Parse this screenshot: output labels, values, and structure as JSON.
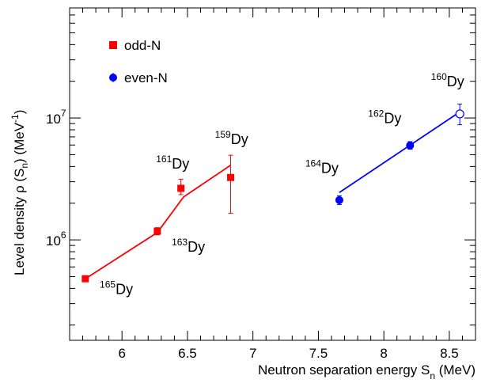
{
  "chart_data": {
    "type": "scatter",
    "title": "",
    "xlabel_main": "Neutron separation energy S",
    "xlabel_sub": "n",
    "xlabel_unit": " (MeV)",
    "ylabel_main": "Level density ρ (S",
    "ylabel_sub": "n",
    "ylabel_mid": ") (MeV",
    "ylabel_sup": "-1",
    "ylabel_end": ")",
    "xlim": [
      5.6,
      8.7
    ],
    "ylim": [
      150000,
      80000000
    ],
    "y_scale": "log",
    "x_ticks": [
      6,
      6.5,
      7,
      7.5,
      8,
      8.5
    ],
    "x_tick_labels": [
      "6",
      "6.5",
      "7",
      "7.5",
      "8",
      "8.5"
    ],
    "y_tick_labels": [
      {
        "value": 1000000,
        "base": "10",
        "exp": "6"
      },
      {
        "value": 10000000,
        "base": "10",
        "exp": "7"
      }
    ],
    "legend": {
      "placement": "top-left",
      "entries": [
        {
          "label": "odd-N",
          "color": "#ff0000",
          "marker": "square"
        },
        {
          "label": "even-N",
          "color": "#0000ff",
          "marker": "circle"
        }
      ]
    },
    "series": [
      {
        "name": "odd-N",
        "color": "#ff0000",
        "marker": "square",
        "points": [
          {
            "x": 5.72,
            "y": 480000,
            "err_lo": 455000,
            "err_hi": 505000
          },
          {
            "x": 6.27,
            "y": 1180000,
            "err_lo": 1100000,
            "err_hi": 1260000
          },
          {
            "x": 6.45,
            "y": 2650000,
            "err_lo": 2350000,
            "err_hi": 3150000
          },
          {
            "x": 6.83,
            "y": 3250000,
            "err_lo": 1650000,
            "err_hi": 4950000
          }
        ],
        "line": [
          {
            "x": 5.72,
            "y": 480000
          },
          {
            "x": 6.27,
            "y": 1150000
          },
          {
            "x": 6.47,
            "y": 2250000
          },
          {
            "x": 6.83,
            "y": 4100000
          }
        ]
      },
      {
        "name": "even-N",
        "color": "#0000ff",
        "marker": "circle",
        "points": [
          {
            "x": 7.66,
            "y": 2120000,
            "err_lo": 1950000,
            "err_hi": 2300000,
            "open": false
          },
          {
            "x": 8.2,
            "y": 5950000,
            "err_lo": 5550000,
            "err_hi": 6400000,
            "open": false
          },
          {
            "x": 8.58,
            "y": 10800000,
            "err_lo": 8800000,
            "err_hi": 13000000,
            "open": true
          }
        ],
        "line": [
          {
            "x": 7.66,
            "y": 2450000
          },
          {
            "x": 8.58,
            "y": 11200000
          }
        ]
      }
    ],
    "annotations": [
      {
        "mass": "165",
        "element": "Dy",
        "x": 5.83,
        "y": 360000
      },
      {
        "mass": "163",
        "element": "Dy",
        "x": 6.38,
        "y": 800000
      },
      {
        "mass": "161",
        "element": "Dy",
        "x": 6.26,
        "y": 3850000
      },
      {
        "mass": "159",
        "element": "Dy",
        "x": 6.71,
        "y": 6100000
      },
      {
        "mass": "164",
        "element": "Dy",
        "x": 7.4,
        "y": 3550000
      },
      {
        "mass": "162",
        "element": "Dy",
        "x": 7.88,
        "y": 9100000
      },
      {
        "mass": "160",
        "element": "Dy",
        "x": 8.36,
        "y": 18200000
      }
    ]
  }
}
